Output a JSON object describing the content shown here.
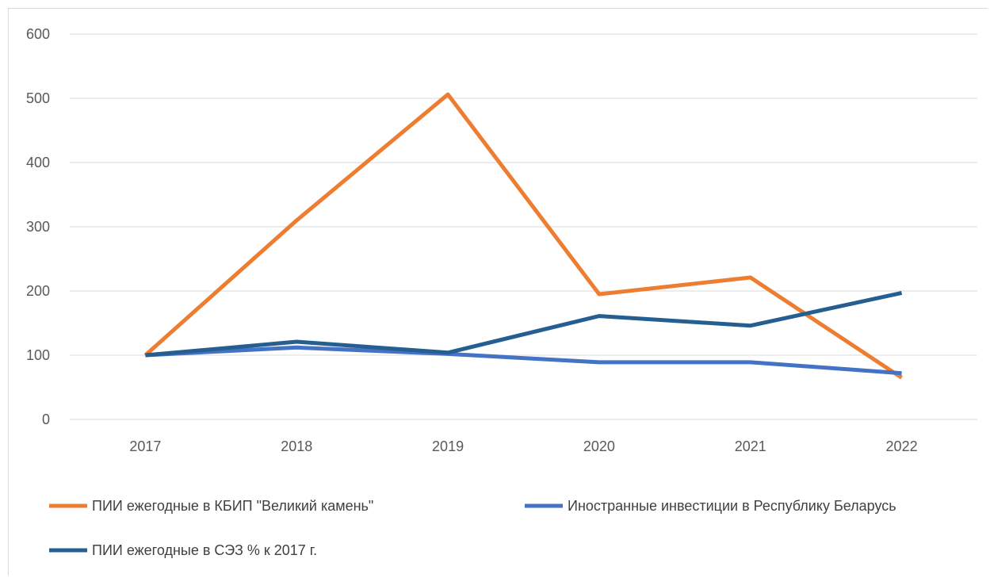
{
  "chart_data": {
    "type": "line",
    "categories": [
      "2017",
      "2018",
      "2019",
      "2020",
      "2021",
      "2022"
    ],
    "ylim": [
      0,
      600
    ],
    "yticks": [
      0,
      100,
      200,
      300,
      400,
      500,
      600
    ],
    "grid": true,
    "legend_position": "bottom",
    "series": [
      {
        "name": "ПИИ ежегодные в КБИП \"Великий камень\"",
        "color": "#ED7D31",
        "values": [
          100,
          310,
          506,
          195,
          221,
          65
        ]
      },
      {
        "name": "Иностранные инвестиции в Республику Беларусь",
        "color": "#4472C4",
        "values": [
          100,
          112,
          102,
          89,
          89,
          72
        ]
      },
      {
        "name": "ПИИ ежегодные в СЭЗ % к 2017 г.",
        "color": "#255E91",
        "values": [
          100,
          121,
          104,
          161,
          146,
          197
        ]
      }
    ]
  }
}
